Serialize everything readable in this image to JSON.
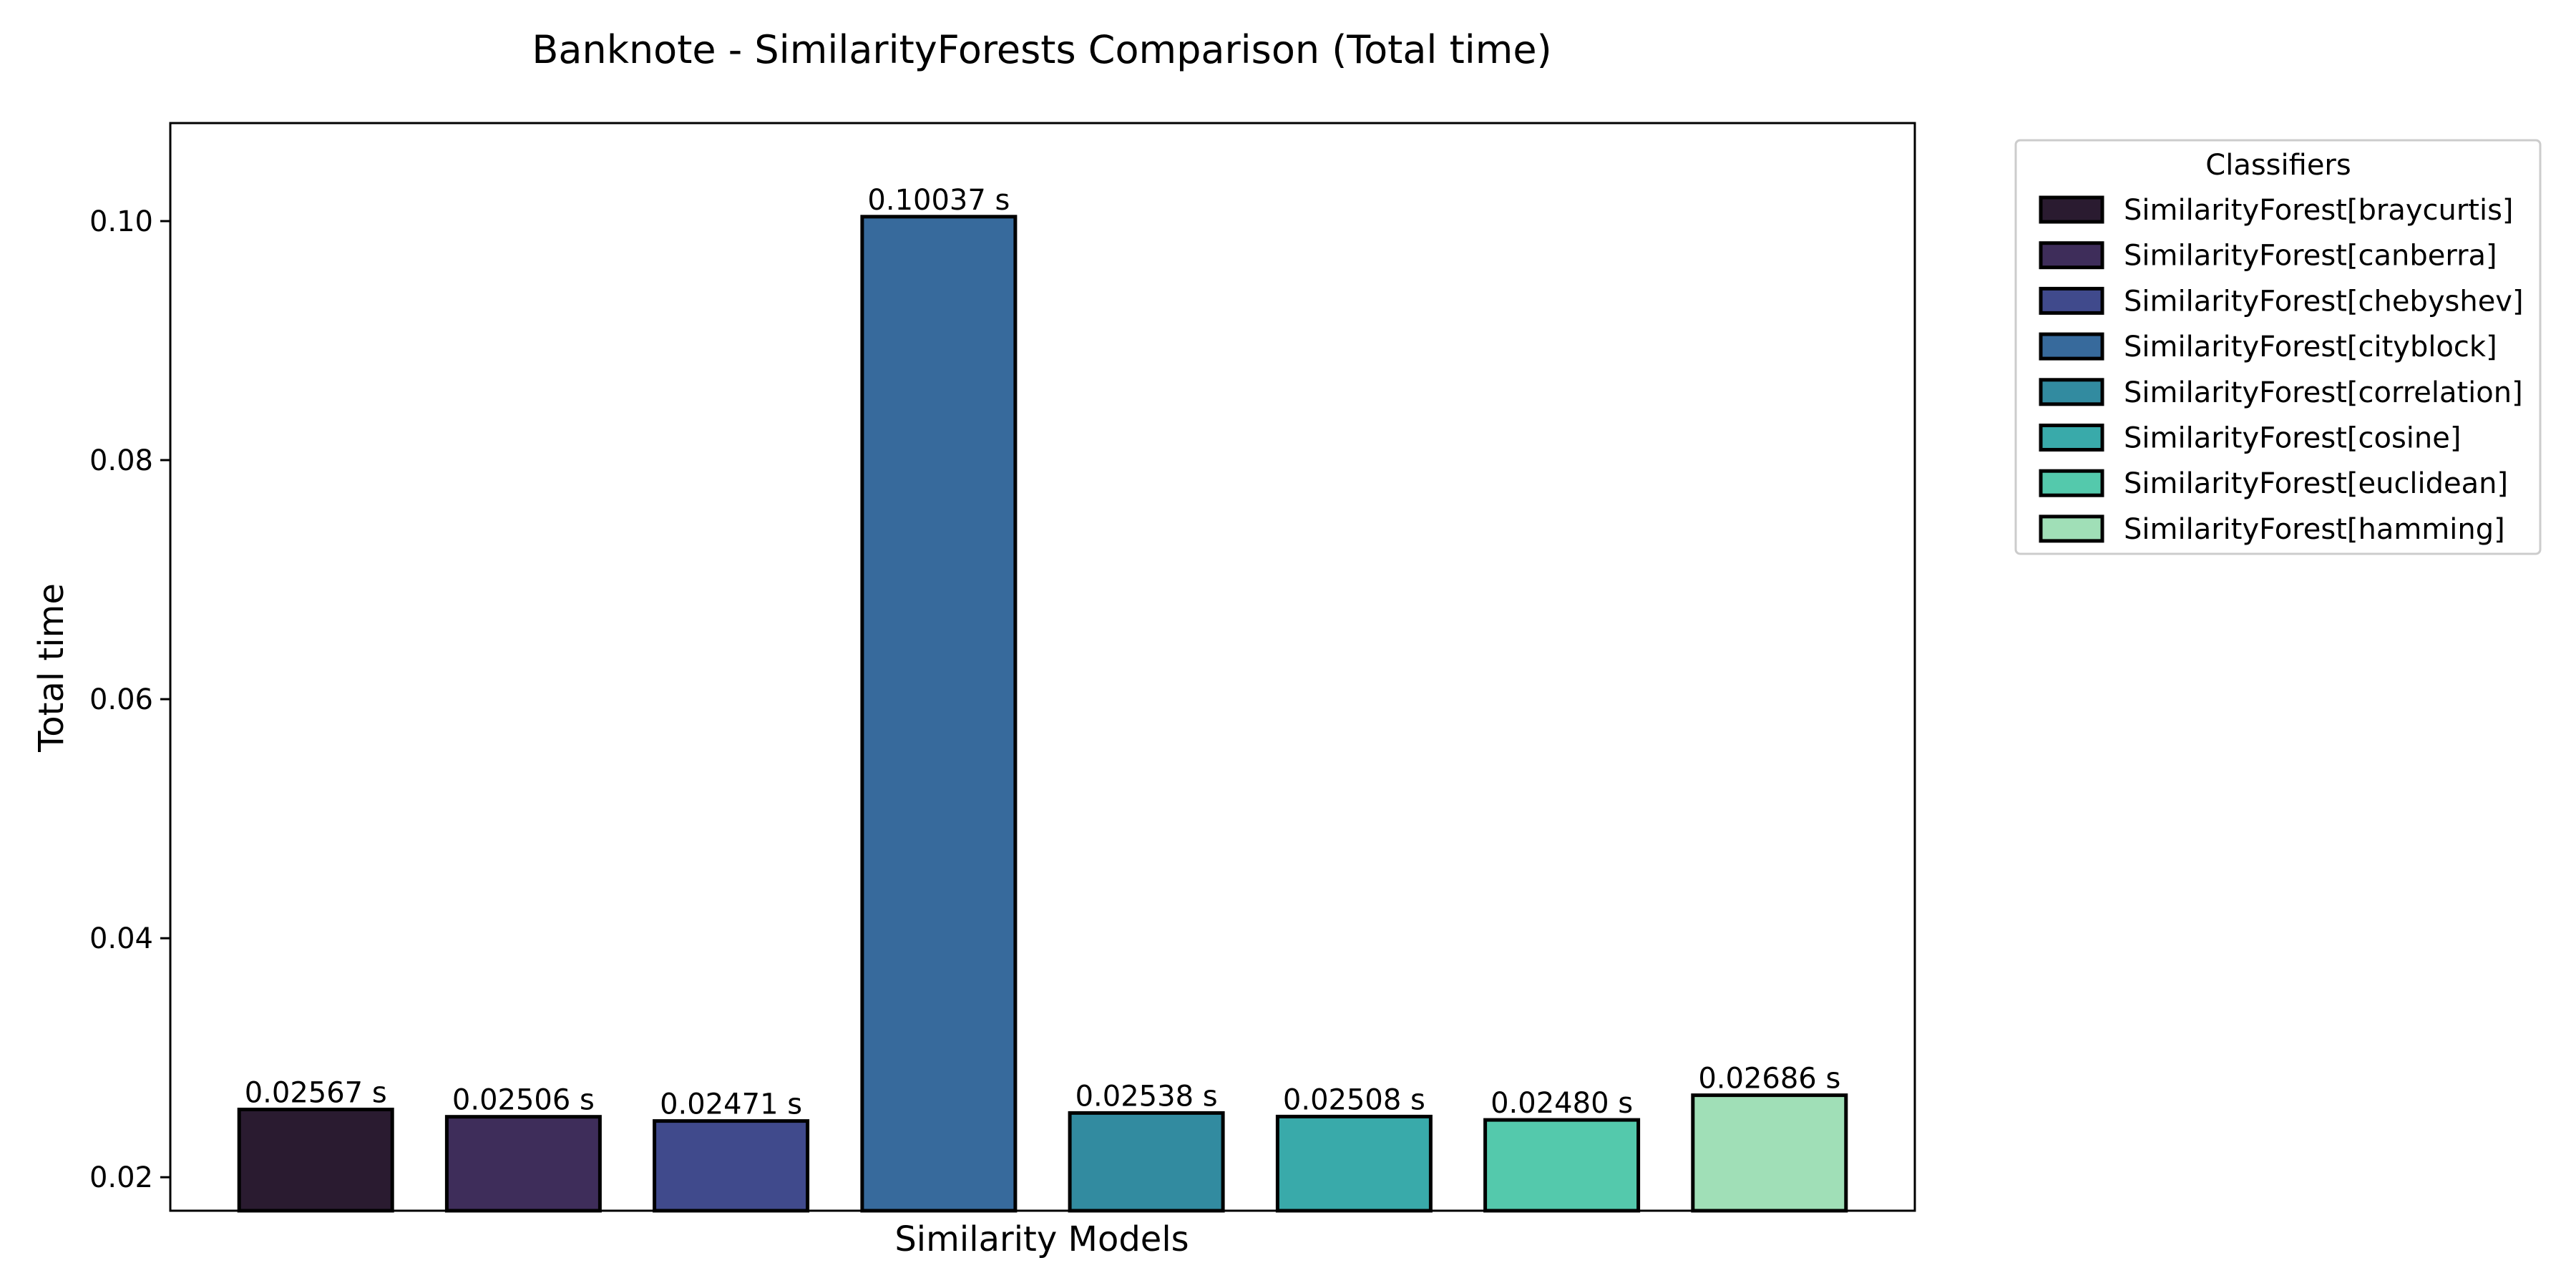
{
  "chart_data": {
    "type": "bar",
    "title": "Banknote - SimilarityForests Comparison (Total time)",
    "xlabel": "Similarity Models",
    "ylabel": "Total time",
    "ylim": [
      0.0172,
      0.1082
    ],
    "yticks": [
      {
        "value": 0.02,
        "label": "0.02"
      },
      {
        "value": 0.04,
        "label": "0.04"
      },
      {
        "value": 0.06,
        "label": "0.06"
      },
      {
        "value": 0.08,
        "label": "0.08"
      },
      {
        "value": 0.1,
        "label": "0.10"
      }
    ],
    "grid": false,
    "legend_title": "Classifiers",
    "legend_position": "outside-upper-right",
    "value_label_suffix": " s",
    "categories": [
      "SimilarityForest[braycurtis]",
      "SimilarityForest[canberra]",
      "SimilarityForest[chebyshev]",
      "SimilarityForest[cityblock]",
      "SimilarityForest[correlation]",
      "SimilarityForest[cosine]",
      "SimilarityForest[euclidean]",
      "SimilarityForest[hamming]"
    ],
    "values": [
      0.02567,
      0.02506,
      0.02471,
      0.10037,
      0.02538,
      0.02508,
      0.0248,
      0.02686
    ],
    "value_labels": [
      "0.02567 s",
      "0.02506 s",
      "0.02471 s",
      "0.10037 s",
      "0.02538 s",
      "0.02508 s",
      "0.02480 s",
      "0.02686 s"
    ],
    "colors": [
      "#2a1b30",
      "#3e2d5a",
      "#404a8c",
      "#376a9c",
      "#328ba0",
      "#39aaaa",
      "#54c9ac",
      "#a0dfb7"
    ],
    "edge_color": "#000000"
  }
}
